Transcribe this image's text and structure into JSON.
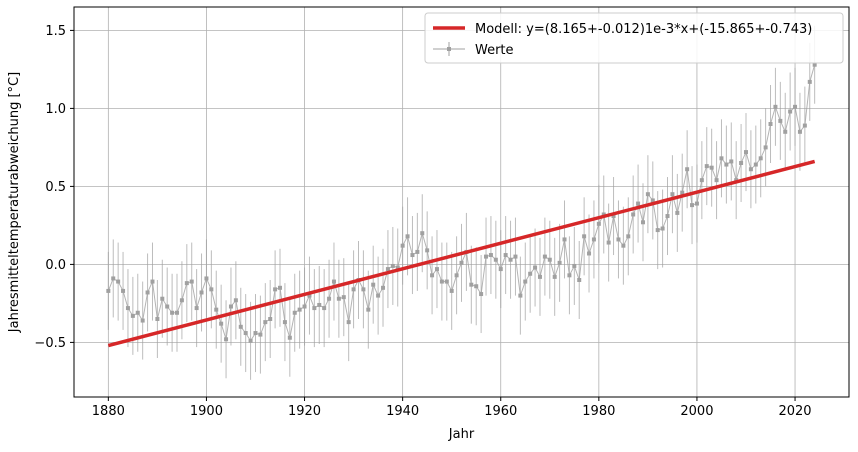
{
  "chart_data": {
    "type": "line",
    "xlabel": "Jahr",
    "ylabel": "Jahresmitteltemperaturabweichung [°C]",
    "xlim": [
      1873,
      2031
    ],
    "ylim": [
      -0.85,
      1.65
    ],
    "x_ticks": [
      1880,
      1900,
      1920,
      1940,
      1960,
      1980,
      2000,
      2020
    ],
    "y_ticks": [
      -0.5,
      0.0,
      0.5,
      1.0,
      1.5
    ],
    "x_tick_labels": [
      "1880",
      "1900",
      "1920",
      "1940",
      "1960",
      "1980",
      "2000",
      "2020"
    ],
    "y_tick_labels": [
      "−0.5",
      "0.0",
      "0.5",
      "1.0",
      "1.5"
    ],
    "grid": true,
    "legend_position": "top-right",
    "legend": {
      "model_label": "Modell: y=(8.165+-0.012)1e-3*x+(-15.865+-0.743)",
      "values_label": "Werte"
    },
    "model_line": {
      "name": "Modell: y=(8.165+-0.012)1e-3*x+(-15.865+-0.743)",
      "x": [
        1880,
        2024
      ],
      "y": [
        -0.52,
        0.66
      ],
      "color": "#d62728"
    },
    "series": [
      {
        "name": "Werte",
        "color": "#a0a0a0",
        "error": 0.25,
        "x_start": 1880,
        "x_end": 2024,
        "values": [
          -0.17,
          -0.09,
          -0.11,
          -0.17,
          -0.28,
          -0.33,
          -0.31,
          -0.36,
          -0.18,
          -0.11,
          -0.35,
          -0.22,
          -0.27,
          -0.31,
          -0.31,
          -0.23,
          -0.12,
          -0.11,
          -0.28,
          -0.18,
          -0.09,
          -0.16,
          -0.29,
          -0.38,
          -0.48,
          -0.27,
          -0.23,
          -0.4,
          -0.44,
          -0.49,
          -0.44,
          -0.45,
          -0.37,
          -0.35,
          -0.16,
          -0.15,
          -0.37,
          -0.47,
          -0.31,
          -0.29,
          -0.27,
          -0.2,
          -0.28,
          -0.26,
          -0.28,
          -0.22,
          -0.11,
          -0.22,
          -0.21,
          -0.37,
          -0.16,
          -0.1,
          -0.16,
          -0.29,
          -0.13,
          -0.2,
          -0.15,
          -0.03,
          -0.01,
          -0.02,
          0.12,
          0.18,
          0.06,
          0.08,
          0.2,
          0.09,
          -0.07,
          -0.03,
          -0.11,
          -0.11,
          -0.17,
          -0.07,
          0.01,
          0.08,
          -0.13,
          -0.14,
          -0.19,
          0.05,
          0.06,
          0.03,
          -0.03,
          0.06,
          0.03,
          0.05,
          -0.2,
          -0.11,
          -0.06,
          -0.02,
          -0.08,
          0.05,
          0.03,
          -0.08,
          0.01,
          0.16,
          -0.07,
          -0.01,
          -0.1,
          0.18,
          0.07,
          0.16,
          0.26,
          0.32,
          0.14,
          0.31,
          0.16,
          0.12,
          0.18,
          0.32,
          0.39,
          0.27,
          0.45,
          0.41,
          0.22,
          0.23,
          0.31,
          0.45,
          0.33,
          0.46,
          0.61,
          0.38,
          0.39,
          0.54,
          0.63,
          0.62,
          0.54,
          0.68,
          0.64,
          0.66,
          0.54,
          0.65,
          0.72,
          0.61,
          0.64,
          0.68,
          0.75,
          0.9,
          1.01,
          0.92,
          0.85,
          0.98,
          1.01,
          0.85,
          0.89,
          1.17,
          1.28
        ]
      }
    ]
  }
}
